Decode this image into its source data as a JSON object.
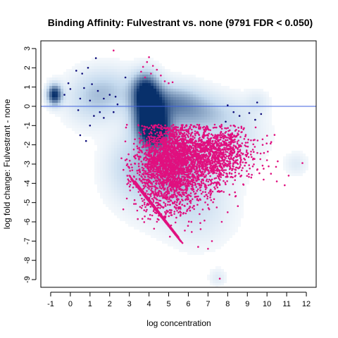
{
  "chart_data": {
    "type": "scatter",
    "title": "Binding Affinity: Fulvestrant vs. none (9791 FDR < 0.050)",
    "xlabel": "log concentration",
    "ylabel": "log fold change: Fulvestrant - none",
    "xlim": [
      -1.5,
      12.5
    ],
    "ylim": [
      -9.4,
      3.4
    ],
    "xticks": [
      -1,
      0,
      1,
      2,
      3,
      4,
      5,
      6,
      7,
      8,
      9,
      10,
      11,
      12
    ],
    "yticks": [
      3,
      2,
      1,
      0,
      -1,
      -2,
      -3,
      -4,
      -5,
      -6,
      -7,
      -8,
      -9
    ],
    "reference_line_y": 0,
    "colors": {
      "density": "#08306b",
      "significant": "#e0107f",
      "nonsignificant_points": "#0d0d7a",
      "reference_line": "#3f5fdc",
      "frame": "#000000"
    },
    "density_blobs": [
      {
        "x": -0.8,
        "y": 0.6,
        "sx": 0.25,
        "sy": 0.35,
        "w": 1.0
      },
      {
        "x": 4.0,
        "y": -0.3,
        "sx": 0.55,
        "sy": 0.9,
        "w": 1.0
      },
      {
        "x": 4.3,
        "y": -1.2,
        "sx": 0.5,
        "sy": 0.6,
        "w": 0.9
      },
      {
        "x": 3.8,
        "y": 0.9,
        "sx": 0.45,
        "sy": 0.6,
        "w": 0.7
      },
      {
        "x": 5.2,
        "y": 0.3,
        "sx": 1.0,
        "sy": 0.6,
        "w": 0.4
      },
      {
        "x": 6.5,
        "y": -0.3,
        "sx": 1.3,
        "sy": 0.6,
        "w": 0.3
      },
      {
        "x": 2.0,
        "y": 0.8,
        "sx": 1.0,
        "sy": 0.8,
        "w": 0.25
      },
      {
        "x": 1.0,
        "y": 0.3,
        "sx": 0.9,
        "sy": 0.9,
        "w": 0.2
      },
      {
        "x": 5.5,
        "y": -2.5,
        "sx": 1.6,
        "sy": 1.5,
        "w": 0.3
      },
      {
        "x": 4.5,
        "y": -4.0,
        "sx": 1.4,
        "sy": 1.2,
        "w": 0.22
      },
      {
        "x": 6.5,
        "y": -5.5,
        "sx": 1.2,
        "sy": 1.2,
        "w": 0.15
      },
      {
        "x": 8.5,
        "y": -1.5,
        "sx": 1.0,
        "sy": 1.0,
        "w": 0.15
      },
      {
        "x": 3.0,
        "y": -3.0,
        "sx": 0.8,
        "sy": 1.0,
        "w": 0.15
      },
      {
        "x": 11.5,
        "y": -3.0,
        "sx": 0.4,
        "sy": 0.4,
        "w": 0.12
      },
      {
        "x": 7.5,
        "y": -8.9,
        "sx": 0.3,
        "sy": 0.3,
        "w": 0.12
      },
      {
        "x": 9.5,
        "y": 0.2,
        "sx": 0.4,
        "sy": 0.4,
        "w": 0.12
      }
    ],
    "significant_clouds": [
      {
        "x": 6.2,
        "y": -2.8,
        "sx": 1.3,
        "sy": 0.9,
        "n": 1400
      },
      {
        "x": 5.2,
        "y": -2.6,
        "sx": 0.7,
        "sy": 0.8,
        "n": 1000
      },
      {
        "x": 5.0,
        "y": -4.2,
        "sx": 0.9,
        "sy": 0.9,
        "n": 500
      },
      {
        "x": 7.5,
        "y": -2.3,
        "sx": 0.9,
        "sy": 0.6,
        "n": 500
      },
      {
        "x": 4.5,
        "y": -3.3,
        "sx": 0.6,
        "sy": 1.0,
        "n": 350
      }
    ],
    "significant_points": [
      [
        2.2,
        2.9
      ],
      [
        4.0,
        2.55
      ],
      [
        3.9,
        2.3
      ],
      [
        4.2,
        2.1
      ],
      [
        3.7,
        2.05
      ],
      [
        4.4,
        1.9
      ],
      [
        4.6,
        1.6
      ],
      [
        4.8,
        1.3
      ],
      [
        5.0,
        1.2
      ],
      [
        3.6,
        1.8
      ],
      [
        4.1,
        1.7
      ],
      [
        5.2,
        1.25
      ],
      [
        3.8,
        1.5
      ],
      [
        2.8,
        -2.8
      ],
      [
        2.6,
        -2.7
      ],
      [
        2.9,
        -3.0
      ],
      [
        3.0,
        -3.2
      ],
      [
        2.7,
        -3.3
      ],
      [
        8.3,
        -1.0
      ],
      [
        8.5,
        -1.5
      ],
      [
        8.8,
        -1.2
      ],
      [
        9.5,
        -3.3
      ],
      [
        9.2,
        -3.7
      ],
      [
        10.0,
        -2.8
      ],
      [
        10.2,
        -3.5
      ],
      [
        10.5,
        -3.9
      ],
      [
        11.1,
        -3.6
      ],
      [
        10.9,
        -4.1
      ],
      [
        11.8,
        -2.95
      ],
      [
        7.0,
        -7.4
      ],
      [
        7.2,
        -7.0
      ],
      [
        6.5,
        -7.3
      ],
      [
        7.6,
        -8.95
      ],
      [
        8.0,
        -5.5
      ],
      [
        7.7,
        -6.0
      ]
    ],
    "diagonal_bands": [
      {
        "x0": 3.0,
        "y0": -3.6,
        "x1": 5.7,
        "y1": -7.1
      },
      {
        "x0": 3.1,
        "y0": -3.8,
        "x1": 5.6,
        "y1": -7.0
      },
      {
        "x0": 3.3,
        "y0": -3.9,
        "x1": 5.5,
        "y1": -6.8
      },
      {
        "x0": 3.4,
        "y0": -4.1,
        "x1": 5.4,
        "y1": -6.7
      }
    ],
    "nonsignificant_points": [
      [
        0.9,
        2.0
      ],
      [
        0.3,
        1.85
      ],
      [
        0.6,
        1.7
      ],
      [
        1.3,
        2.5
      ],
      [
        -0.1,
        1.2
      ],
      [
        0.0,
        0.9
      ],
      [
        0.7,
        0.95
      ],
      [
        1.1,
        1.15
      ],
      [
        1.4,
        0.8
      ],
      [
        1.7,
        0.4
      ],
      [
        2.0,
        0.6
      ],
      [
        2.3,
        0.5
      ],
      [
        0.5,
        0.4
      ],
      [
        1.0,
        0.3
      ],
      [
        1.5,
        -0.3
      ],
      [
        1.2,
        -0.5
      ],
      [
        0.4,
        -0.2
      ],
      [
        1.0,
        -1.0
      ],
      [
        1.7,
        -0.6
      ],
      [
        2.2,
        -0.3
      ],
      [
        0.5,
        -1.5
      ],
      [
        0.8,
        -1.8
      ],
      [
        2.8,
        1.5
      ],
      [
        2.4,
        0.1
      ],
      [
        -0.3,
        0.6
      ],
      [
        8.0,
        0.05
      ],
      [
        8.3,
        -0.3
      ],
      [
        8.6,
        -0.5
      ],
      [
        9.1,
        -0.35
      ],
      [
        9.4,
        -0.7
      ],
      [
        9.7,
        -0.4
      ],
      [
        9.5,
        0.2
      ],
      [
        7.9,
        -0.8
      ]
    ]
  }
}
